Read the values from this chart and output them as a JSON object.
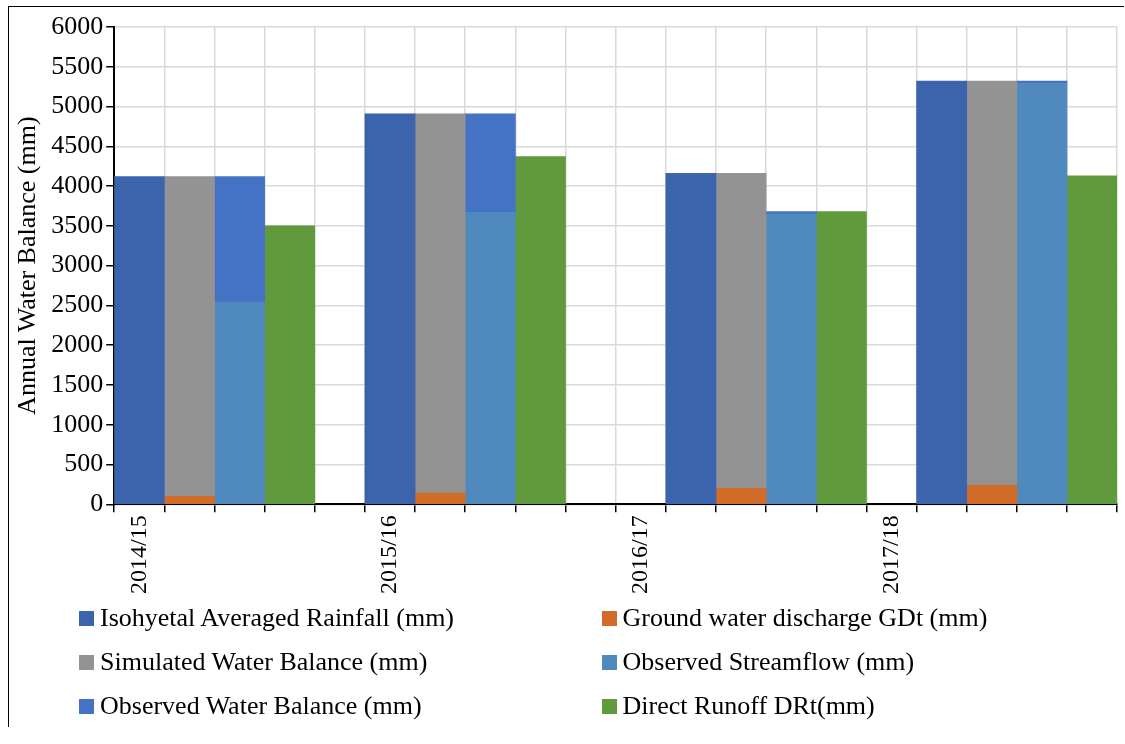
{
  "chart_data": {
    "type": "bar",
    "stacked": true,
    "ylabel": "Annual Water Balance (mm)",
    "categories": [
      "2014/15",
      null,
      null,
      null,
      null,
      "2015/16",
      null,
      null,
      null,
      null,
      "2016/17",
      null,
      null,
      null,
      null,
      "2017/18",
      null,
      null,
      null,
      null
    ],
    "series": [
      {
        "name": "Isohyetal Averaged Rainfall (mm)",
        "color": "#3c64ac",
        "values": [
          4120,
          null,
          null,
          null,
          null,
          4910,
          null,
          null,
          null,
          null,
          null,
          4160,
          null,
          null,
          null,
          null,
          5320,
          null,
          null,
          null
        ]
      },
      {
        "name": "Ground water discharge GDt (mm)",
        "color": "#d06b28",
        "values": [
          null,
          100,
          null,
          null,
          null,
          null,
          140,
          null,
          null,
          null,
          null,
          null,
          200,
          null,
          null,
          null,
          null,
          240,
          null,
          null
        ]
      },
      {
        "name": "Simulated Water Balance (mm)",
        "color": "#939393",
        "values": [
          null,
          4020,
          null,
          null,
          null,
          null,
          4770,
          null,
          null,
          null,
          null,
          null,
          3960,
          null,
          null,
          null,
          null,
          5080,
          null,
          null
        ]
      },
      {
        "name": "Observed Streamflow (mm)",
        "color": "#4f89bd",
        "values": [
          null,
          null,
          2540,
          null,
          null,
          null,
          null,
          3670,
          null,
          null,
          null,
          null,
          null,
          3650,
          null,
          null,
          null,
          null,
          5290,
          null
        ]
      },
      {
        "name": "Observed Water Balance (mm)",
        "color": "#4472c4",
        "values": [
          null,
          null,
          1580,
          null,
          null,
          null,
          null,
          1240,
          null,
          null,
          null,
          null,
          null,
          30,
          null,
          null,
          null,
          null,
          30,
          null
        ]
      },
      {
        "name": "Direct Runoff DRt(mm)",
        "color": "#619a3c",
        "values": [
          null,
          null,
          null,
          3500,
          null,
          null,
          null,
          null,
          4370,
          null,
          null,
          null,
          null,
          null,
          3680,
          null,
          null,
          null,
          null,
          4130
        ]
      }
    ],
    "ylim": [
      0,
      6000
    ],
    "yticks": [
      0,
      500,
      1000,
      1500,
      2000,
      2500,
      3000,
      3500,
      4000,
      4500,
      5000,
      5500,
      6000
    ],
    "grid": true,
    "legend": "bottom"
  }
}
